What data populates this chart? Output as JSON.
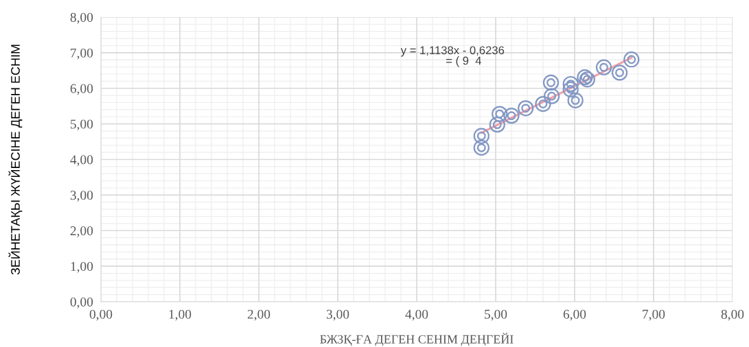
{
  "chart_data": {
    "type": "scatter",
    "xlabel": "БЖЗҚ-ҒА ДЕГЕН СЕНІМ ДЕҢГЕЙІ",
    "ylabel": "ЗЕЙНЕТАҚЫ ЖҮЙЕСІНЕ ДЕГЕН ЕСНІМ",
    "annotations": [
      "y = 1,1138x - 0,6236",
      "= ( 9  4"
    ],
    "series": [
      {
        "color": "#8397c4",
        "marker": "circle",
        "x": [
          4.82,
          4.82,
          5.02,
          5.05,
          5.2,
          5.38,
          5.6,
          5.71,
          5.7,
          5.95,
          5.95,
          6.01,
          6.13,
          6.16,
          6.37,
          6.57,
          6.72
        ],
        "values": [
          4.66,
          4.33,
          4.98,
          5.28,
          5.23,
          5.44,
          5.56,
          5.78,
          6.16,
          6.12,
          5.97,
          5.66,
          6.31,
          6.25,
          6.59,
          6.44,
          6.81
        ]
      },
      {
        "type": "line",
        "color": "#f4a0a8",
        "x": [
          4.82,
          6.72
        ],
        "values": [
          4.75,
          6.86
        ]
      }
    ],
    "xlim": [
      0,
      8
    ],
    "ylim": [
      0,
      8
    ],
    "xticks": [
      {
        "value": 0,
        "label": "0,00"
      },
      {
        "value": 1,
        "label": "1,00"
      },
      {
        "value": 2,
        "label": "2,00"
      },
      {
        "value": 3,
        "label": "3,00"
      },
      {
        "value": 4,
        "label": "4,00"
      },
      {
        "value": 5,
        "label": "5,00"
      },
      {
        "value": 6,
        "label": "6,00"
      },
      {
        "value": 7,
        "label": "7,00"
      },
      {
        "value": 8,
        "label": "8,00"
      }
    ],
    "yticks": [
      {
        "value": 0,
        "label": "0,00"
      },
      {
        "value": 1,
        "label": "1,00"
      },
      {
        "value": 2,
        "label": "2,00"
      },
      {
        "value": 3,
        "label": "3,00"
      },
      {
        "value": 4,
        "label": "4,00"
      },
      {
        "value": 5,
        "label": "5,00"
      },
      {
        "value": 6,
        "label": "6,00"
      },
      {
        "value": 7,
        "label": "7,00"
      },
      {
        "value": 8,
        "label": "8,00"
      }
    ],
    "grid": true,
    "legend": false
  }
}
